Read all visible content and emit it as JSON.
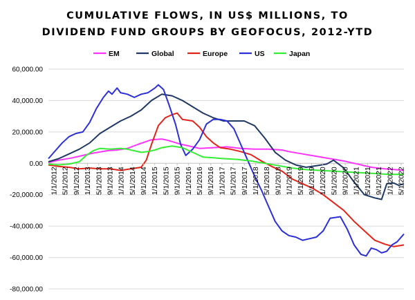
{
  "chart_data": {
    "type": "line",
    "title_lines": [
      "CUMULATIVE FLOWS, IN US$ MILLIONS, TO",
      "DIVIDEND FUND GROUPS BY GEOFOCUS, 2012-YTD"
    ],
    "xlabel": "",
    "ylabel": "",
    "ylim": [
      -80000,
      60000
    ],
    "yticks": [
      60000,
      40000,
      20000,
      0,
      -20000,
      -40000,
      -60000,
      -80000
    ],
    "ytick_labels": [
      "60,000.00",
      "40,000.00",
      "20,000.00",
      "0.00",
      "-20,000.00",
      "-40,000.00",
      "-60,000.00",
      "-80,000.00"
    ],
    "xlim": [
      2012.0,
      2022.35
    ],
    "xtick_labels": [
      "1/1/2012",
      "5/1/2012",
      "9/1/2012",
      "1/1/2013",
      "5/1/2013",
      "9/1/2013",
      "1/1/2014",
      "5/1/2014",
      "9/1/2014",
      "1/1/2015",
      "5/1/2015",
      "9/1/2015",
      "1/1/2016",
      "5/1/2016",
      "9/1/2016",
      "1/1/2017",
      "5/1/2017",
      "9/1/2017",
      "1/1/2018",
      "5/1/2018",
      "9/1/2018",
      "1/1/2019",
      "5/1/2019",
      "9/1/2019",
      "1/1/2020",
      "5/1/2020",
      "9/1/2020",
      "1/1/2021",
      "5/1/2021",
      "9/1/2021",
      "1/1/2022",
      "5/1/2022"
    ],
    "grid": true,
    "legend_position": "top",
    "series": [
      {
        "name": "EM",
        "color": "#ff33ff",
        "points": [
          [
            2012.0,
            500
          ],
          [
            2012.3,
            2000
          ],
          [
            2012.7,
            3500
          ],
          [
            2013.0,
            5000
          ],
          [
            2013.3,
            6500
          ],
          [
            2013.7,
            8000
          ],
          [
            2014.0,
            8500
          ],
          [
            2014.3,
            9500
          ],
          [
            2014.6,
            12000
          ],
          [
            2014.8,
            13500
          ],
          [
            2015.0,
            15000
          ],
          [
            2015.3,
            15500
          ],
          [
            2015.5,
            14500
          ],
          [
            2015.8,
            12500
          ],
          [
            2016.0,
            11500
          ],
          [
            2016.4,
            9500
          ],
          [
            2016.8,
            10000
          ],
          [
            2017.2,
            10500
          ],
          [
            2017.6,
            9500
          ],
          [
            2018.0,
            9000
          ],
          [
            2018.4,
            9000
          ],
          [
            2018.8,
            8500
          ],
          [
            2019.0,
            7500
          ],
          [
            2019.4,
            6000
          ],
          [
            2019.8,
            4500
          ],
          [
            2020.2,
            3000
          ],
          [
            2020.6,
            1500
          ],
          [
            2021.0,
            -500
          ],
          [
            2021.4,
            -2500
          ],
          [
            2021.8,
            -3500
          ],
          [
            2022.1,
            -4000
          ],
          [
            2022.35,
            -4500
          ]
        ]
      },
      {
        "name": "Global",
        "color": "#1f3864",
        "points": [
          [
            2012.0,
            1000
          ],
          [
            2012.3,
            3000
          ],
          [
            2012.6,
            6000
          ],
          [
            2012.9,
            9000
          ],
          [
            2013.2,
            13000
          ],
          [
            2013.5,
            19000
          ],
          [
            2013.8,
            23000
          ],
          [
            2014.1,
            27000
          ],
          [
            2014.4,
            30000
          ],
          [
            2014.7,
            34000
          ],
          [
            2015.0,
            40000
          ],
          [
            2015.3,
            44000
          ],
          [
            2015.6,
            43000
          ],
          [
            2015.9,
            40000
          ],
          [
            2016.2,
            36000
          ],
          [
            2016.5,
            32000
          ],
          [
            2016.8,
            29000
          ],
          [
            2017.1,
            27000
          ],
          [
            2017.4,
            27000
          ],
          [
            2017.7,
            27000
          ],
          [
            2018.0,
            24000
          ],
          [
            2018.3,
            16000
          ],
          [
            2018.6,
            7000
          ],
          [
            2018.9,
            2000
          ],
          [
            2019.2,
            -1000
          ],
          [
            2019.5,
            -2500
          ],
          [
            2019.8,
            -1500
          ],
          [
            2020.1,
            -500
          ],
          [
            2020.3,
            2000
          ],
          [
            2020.6,
            -3000
          ],
          [
            2020.9,
            -12000
          ],
          [
            2021.2,
            -20000
          ],
          [
            2021.5,
            -22000
          ],
          [
            2021.7,
            -23000
          ],
          [
            2021.85,
            -13000
          ],
          [
            2022.05,
            -12500
          ],
          [
            2022.2,
            -14000
          ],
          [
            2022.35,
            -13000
          ]
        ]
      },
      {
        "name": "Europe",
        "color": "#e2231a",
        "points": [
          [
            2012.0,
            -1000
          ],
          [
            2012.3,
            -2000
          ],
          [
            2012.6,
            -2500
          ],
          [
            2012.9,
            -3500
          ],
          [
            2013.2,
            -3000
          ],
          [
            2013.5,
            -3500
          ],
          [
            2013.8,
            -3500
          ],
          [
            2014.1,
            -4500
          ],
          [
            2014.4,
            -3500
          ],
          [
            2014.7,
            -2500
          ],
          [
            2014.85,
            2000
          ],
          [
            2015.0,
            12000
          ],
          [
            2015.2,
            24000
          ],
          [
            2015.4,
            29000
          ],
          [
            2015.6,
            31000
          ],
          [
            2015.75,
            32000
          ],
          [
            2015.9,
            28000
          ],
          [
            2016.2,
            27000
          ],
          [
            2016.4,
            23000
          ],
          [
            2016.6,
            17000
          ],
          [
            2016.8,
            13000
          ],
          [
            2017.0,
            10000
          ],
          [
            2017.3,
            9000
          ],
          [
            2017.6,
            7500
          ],
          [
            2017.9,
            5500
          ],
          [
            2018.2,
            1500
          ],
          [
            2018.5,
            -2000
          ],
          [
            2018.8,
            -5000
          ],
          [
            2019.1,
            -10000
          ],
          [
            2019.4,
            -13000
          ],
          [
            2019.7,
            -16000
          ],
          [
            2020.0,
            -20000
          ],
          [
            2020.3,
            -25000
          ],
          [
            2020.6,
            -30000
          ],
          [
            2020.9,
            -37000
          ],
          [
            2021.2,
            -43000
          ],
          [
            2021.5,
            -49000
          ],
          [
            2021.8,
            -51500
          ],
          [
            2022.05,
            -53000
          ],
          [
            2022.35,
            -52000
          ]
        ]
      },
      {
        "name": "US",
        "color": "#2a2fd9",
        "points": [
          [
            2012.0,
            3000
          ],
          [
            2012.2,
            8000
          ],
          [
            2012.4,
            13000
          ],
          [
            2012.6,
            17000
          ],
          [
            2012.8,
            19000
          ],
          [
            2013.0,
            20000
          ],
          [
            2013.2,
            26000
          ],
          [
            2013.4,
            35000
          ],
          [
            2013.6,
            42000
          ],
          [
            2013.75,
            46000
          ],
          [
            2013.85,
            44000
          ],
          [
            2014.0,
            48000
          ],
          [
            2014.1,
            45000
          ],
          [
            2014.3,
            44000
          ],
          [
            2014.5,
            42000
          ],
          [
            2014.7,
            44000
          ],
          [
            2014.9,
            45000
          ],
          [
            2015.1,
            48000
          ],
          [
            2015.2,
            50000
          ],
          [
            2015.35,
            47000
          ],
          [
            2015.5,
            38000
          ],
          [
            2015.7,
            25000
          ],
          [
            2015.85,
            12000
          ],
          [
            2016.0,
            5000
          ],
          [
            2016.2,
            9000
          ],
          [
            2016.4,
            15000
          ],
          [
            2016.6,
            25000
          ],
          [
            2016.8,
            28000
          ],
          [
            2017.0,
            28000
          ],
          [
            2017.2,
            27000
          ],
          [
            2017.4,
            22000
          ],
          [
            2017.6,
            12000
          ],
          [
            2017.8,
            2000
          ],
          [
            2018.0,
            -8000
          ],
          [
            2018.2,
            -17000
          ],
          [
            2018.4,
            -27000
          ],
          [
            2018.6,
            -37000
          ],
          [
            2018.8,
            -43000
          ],
          [
            2019.0,
            -46000
          ],
          [
            2019.2,
            -47000
          ],
          [
            2019.4,
            -49000
          ],
          [
            2019.6,
            -48000
          ],
          [
            2019.8,
            -47000
          ],
          [
            2020.0,
            -43000
          ],
          [
            2020.2,
            -35000
          ],
          [
            2020.5,
            -34000
          ],
          [
            2020.7,
            -42000
          ],
          [
            2020.9,
            -52000
          ],
          [
            2021.1,
            -58000
          ],
          [
            2021.25,
            -59000
          ],
          [
            2021.4,
            -54000
          ],
          [
            2021.55,
            -55000
          ],
          [
            2021.7,
            -57000
          ],
          [
            2021.85,
            -56000
          ],
          [
            2022.0,
            -52000
          ],
          [
            2022.15,
            -50000
          ],
          [
            2022.35,
            -45000
          ]
        ]
      },
      {
        "name": "Japan",
        "color": "#33ee33",
        "points": [
          [
            2012.0,
            -500
          ],
          [
            2012.3,
            -1000
          ],
          [
            2012.6,
            -500
          ],
          [
            2012.9,
            1000
          ],
          [
            2013.1,
            5000
          ],
          [
            2013.3,
            8000
          ],
          [
            2013.5,
            9500
          ],
          [
            2013.8,
            9000
          ],
          [
            2014.1,
            9500
          ],
          [
            2014.3,
            9000
          ],
          [
            2014.5,
            8000
          ],
          [
            2014.7,
            7000
          ],
          [
            2014.9,
            7500
          ],
          [
            2015.1,
            8500
          ],
          [
            2015.3,
            10000
          ],
          [
            2015.6,
            11000
          ],
          [
            2015.9,
            10000
          ],
          [
            2016.2,
            7000
          ],
          [
            2016.5,
            4000
          ],
          [
            2016.8,
            3500
          ],
          [
            2017.1,
            3000
          ],
          [
            2017.5,
            2500
          ],
          [
            2017.9,
            1500
          ],
          [
            2018.3,
            0
          ],
          [
            2018.7,
            -1500
          ],
          [
            2019.1,
            -3000
          ],
          [
            2019.5,
            -4000
          ],
          [
            2019.9,
            -4500
          ],
          [
            2020.3,
            -5000
          ],
          [
            2020.7,
            -5500
          ],
          [
            2021.1,
            -6000
          ],
          [
            2021.5,
            -6500
          ],
          [
            2021.9,
            -7000
          ],
          [
            2022.35,
            -7000
          ]
        ]
      }
    ]
  }
}
